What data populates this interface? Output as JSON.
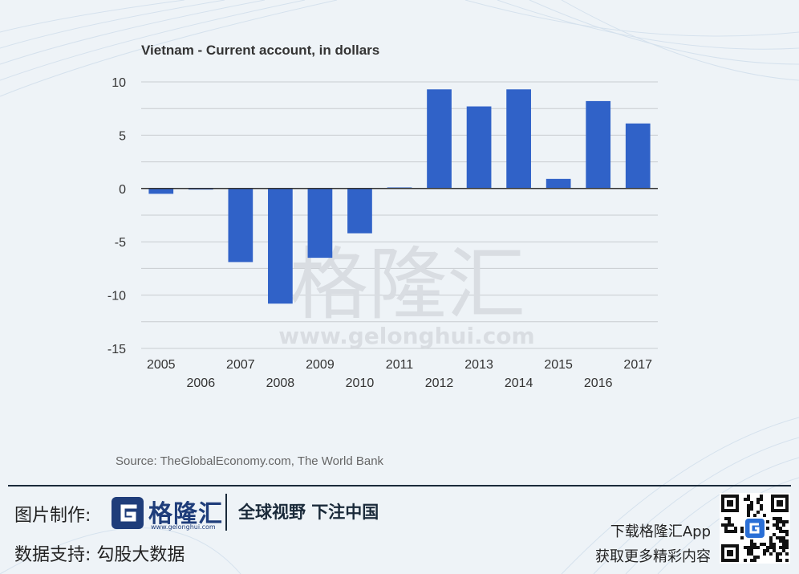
{
  "chart_data": {
    "type": "bar",
    "title": "Vietnam - Current account, in dollars",
    "categories": [
      "2005",
      "2006",
      "2007",
      "2008",
      "2009",
      "2010",
      "2011",
      "2012",
      "2013",
      "2014",
      "2015",
      "2016",
      "2017"
    ],
    "values": [
      -0.5,
      -0.1,
      -6.9,
      -10.8,
      -6.5,
      -4.2,
      0.1,
      9.3,
      7.7,
      9.3,
      0.9,
      8.2,
      6.1
    ],
    "ylim": [
      -15,
      10
    ],
    "yticks": [
      10,
      5,
      0,
      -5,
      -10,
      -15
    ],
    "xlabel": "",
    "ylabel": "",
    "grid": true,
    "bar_color": "#3062c8",
    "source": "Source: TheGlobalEconomy.com, The World Bank"
  },
  "watermark": {
    "text_cn": "格隆汇",
    "url": "www.gelonghui.com"
  },
  "footer": {
    "made_by_label": "图片制作:",
    "data_support_label": "数据支持:  勾股大数据",
    "logo_text": "格隆汇",
    "logo_url": "www.gelonghui.com",
    "slogan": "全球视野 下注中国",
    "download_line1": "下载格隆汇App",
    "download_line2": "获取更多精彩内容",
    "brand_color": "#1f3d7a"
  }
}
